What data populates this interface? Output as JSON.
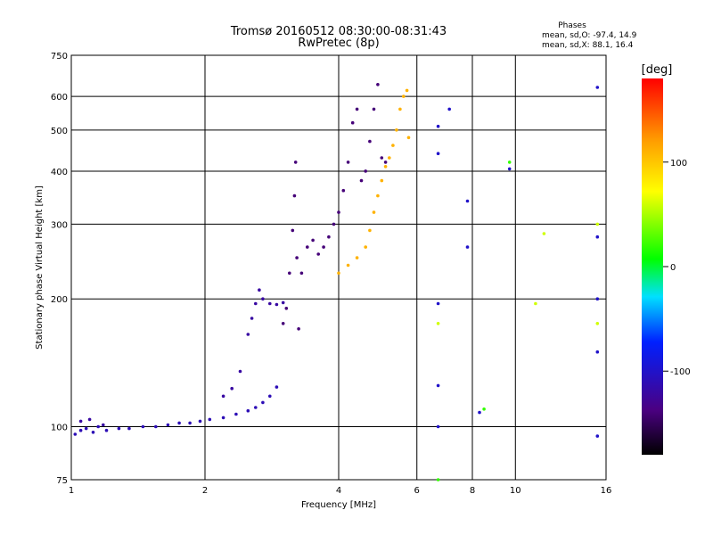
{
  "chart_data": {
    "type": "scatter",
    "title_line1": "Tromsø 20160512 08:30:00-08:31:43",
    "title_line2": "RwPretec (8p)",
    "info_title": "Phases",
    "info_o": "mean, sd,O: -97.4, 14.9",
    "info_x": "mean, sd,X: 88.1, 16.4",
    "xlabel": "Frequency [MHz]",
    "ylabel": "Stationary phase Virtual Height [km]",
    "xscale": "log",
    "yscale": "log",
    "xlim": [
      1,
      16
    ],
    "ylim": [
      75,
      750
    ],
    "grid": true,
    "xticks": [
      {
        "value": 1,
        "label": "1"
      },
      {
        "value": 2,
        "label": "2"
      },
      {
        "value": 4,
        "label": "4"
      },
      {
        "value": 6,
        "label": "6"
      },
      {
        "value": 8,
        "label": "8"
      },
      {
        "value": 10,
        "label": "10"
      },
      {
        "value": 16,
        "label": "16"
      }
    ],
    "yticks": [
      {
        "value": 75,
        "label": "75"
      },
      {
        "value": 100,
        "label": "100"
      },
      {
        "value": 200,
        "label": "200"
      },
      {
        "value": 300,
        "label": "300"
      },
      {
        "value": 400,
        "label": "400"
      },
      {
        "value": 500,
        "label": "500"
      },
      {
        "value": 600,
        "label": "600"
      },
      {
        "value": 750,
        "label": "750"
      }
    ],
    "colorbar": {
      "label": "[deg]",
      "range": [
        -180,
        180
      ],
      "ticks": [
        {
          "value": 100,
          "label": "100"
        },
        {
          "value": 0,
          "label": "0"
        },
        {
          "value": -100,
          "label": "-100"
        }
      ]
    },
    "series": [
      {
        "phase": -110,
        "points": [
          [
            1.02,
            96
          ],
          [
            1.05,
            98
          ],
          [
            1.08,
            99
          ],
          [
            1.12,
            97
          ],
          [
            1.15,
            100
          ],
          [
            1.2,
            98
          ],
          [
            1.28,
            99
          ],
          [
            1.35,
            99
          ],
          [
            1.45,
            100
          ],
          [
            1.55,
            100
          ],
          [
            1.65,
            101
          ],
          [
            1.75,
            102
          ],
          [
            1.85,
            102
          ],
          [
            1.95,
            103
          ],
          [
            2.05,
            104
          ],
          [
            2.2,
            105
          ],
          [
            2.35,
            107
          ],
          [
            2.5,
            109
          ],
          [
            2.6,
            111
          ],
          [
            2.7,
            114
          ],
          [
            2.8,
            118
          ],
          [
            2.9,
            124
          ]
        ]
      },
      {
        "phase": -120,
        "points": [
          [
            1.05,
            103
          ],
          [
            1.1,
            104
          ],
          [
            1.18,
            101
          ],
          [
            2.2,
            118
          ],
          [
            2.3,
            123
          ],
          [
            2.4,
            135
          ],
          [
            2.5,
            165
          ],
          [
            2.55,
            180
          ],
          [
            2.6,
            195
          ],
          [
            2.65,
            210
          ],
          [
            2.7,
            200
          ],
          [
            2.8,
            195
          ],
          [
            2.9,
            194
          ],
          [
            3.0,
            196
          ]
        ]
      },
      {
        "phase": -140,
        "points": [
          [
            3.0,
            175
          ],
          [
            3.05,
            190
          ],
          [
            3.1,
            230
          ],
          [
            3.15,
            290
          ],
          [
            3.18,
            350
          ],
          [
            3.2,
            420
          ],
          [
            3.22,
            250
          ],
          [
            3.25,
            170
          ],
          [
            3.3,
            230
          ],
          [
            3.4,
            265
          ],
          [
            3.5,
            275
          ],
          [
            3.6,
            255
          ],
          [
            3.7,
            265
          ],
          [
            3.8,
            280
          ],
          [
            3.9,
            300
          ],
          [
            4.0,
            320
          ],
          [
            4.1,
            360
          ],
          [
            4.2,
            420
          ],
          [
            4.3,
            520
          ],
          [
            4.4,
            560
          ],
          [
            4.5,
            380
          ],
          [
            4.6,
            400
          ],
          [
            4.7,
            470
          ],
          [
            4.8,
            560
          ],
          [
            4.9,
            640
          ],
          [
            5.0,
            430
          ],
          [
            5.1,
            420
          ]
        ]
      },
      {
        "phase": 110,
        "points": [
          [
            4.0,
            230
          ],
          [
            4.2,
            240
          ],
          [
            4.4,
            250
          ],
          [
            4.6,
            265
          ],
          [
            4.7,
            290
          ],
          [
            4.8,
            320
          ],
          [
            4.9,
            350
          ],
          [
            5.0,
            380
          ],
          [
            5.1,
            410
          ],
          [
            5.2,
            430
          ],
          [
            5.3,
            460
          ],
          [
            5.4,
            500
          ],
          [
            5.5,
            560
          ],
          [
            5.6,
            600
          ],
          [
            5.7,
            620
          ],
          [
            5.75,
            480
          ]
        ]
      },
      {
        "phase": -100,
        "points": [
          [
            6.7,
            100
          ],
          [
            6.7,
            125
          ],
          [
            6.7,
            195
          ],
          [
            6.7,
            440
          ],
          [
            6.7,
            510
          ],
          [
            7.1,
            560
          ],
          [
            7.8,
            265
          ],
          [
            7.8,
            340
          ],
          [
            8.3,
            108
          ],
          [
            9.7,
            405
          ],
          [
            15.3,
            95
          ],
          [
            15.3,
            150
          ],
          [
            15.3,
            200
          ],
          [
            15.3,
            280
          ],
          [
            15.3,
            630
          ]
        ]
      },
      {
        "phase": 60,
        "points": [
          [
            6.7,
            175
          ],
          [
            11.1,
            195
          ],
          [
            11.6,
            285
          ],
          [
            15.3,
            175
          ],
          [
            15.3,
            300
          ]
        ]
      },
      {
        "phase": 20,
        "points": [
          [
            6.7,
            75
          ],
          [
            8.5,
            110
          ],
          [
            9.7,
            420
          ]
        ]
      }
    ]
  }
}
